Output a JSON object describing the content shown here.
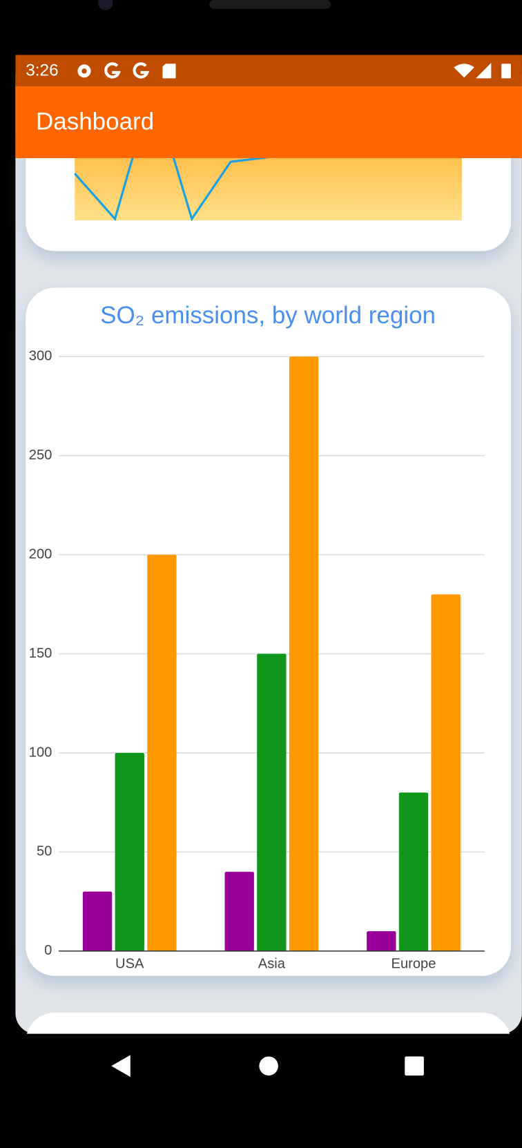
{
  "status_bar": {
    "time": "3:26"
  },
  "app_bar": {
    "title": "Dashboard"
  },
  "chart_data": {
    "type": "bar",
    "title": "SO₂ emissions, by world region",
    "categories": [
      "USA",
      "Asia",
      "Europe"
    ],
    "series": [
      {
        "color": "#990099",
        "values": [
          30,
          40,
          10
        ]
      },
      {
        "color": "#109618",
        "values": [
          100,
          150,
          80
        ]
      },
      {
        "color": "#ff9900",
        "values": [
          200,
          300,
          180
        ]
      }
    ],
    "ylim": [
      0,
      300
    ],
    "yticks": [
      0,
      50,
      100,
      150,
      200,
      250,
      300
    ],
    "grid": true
  }
}
